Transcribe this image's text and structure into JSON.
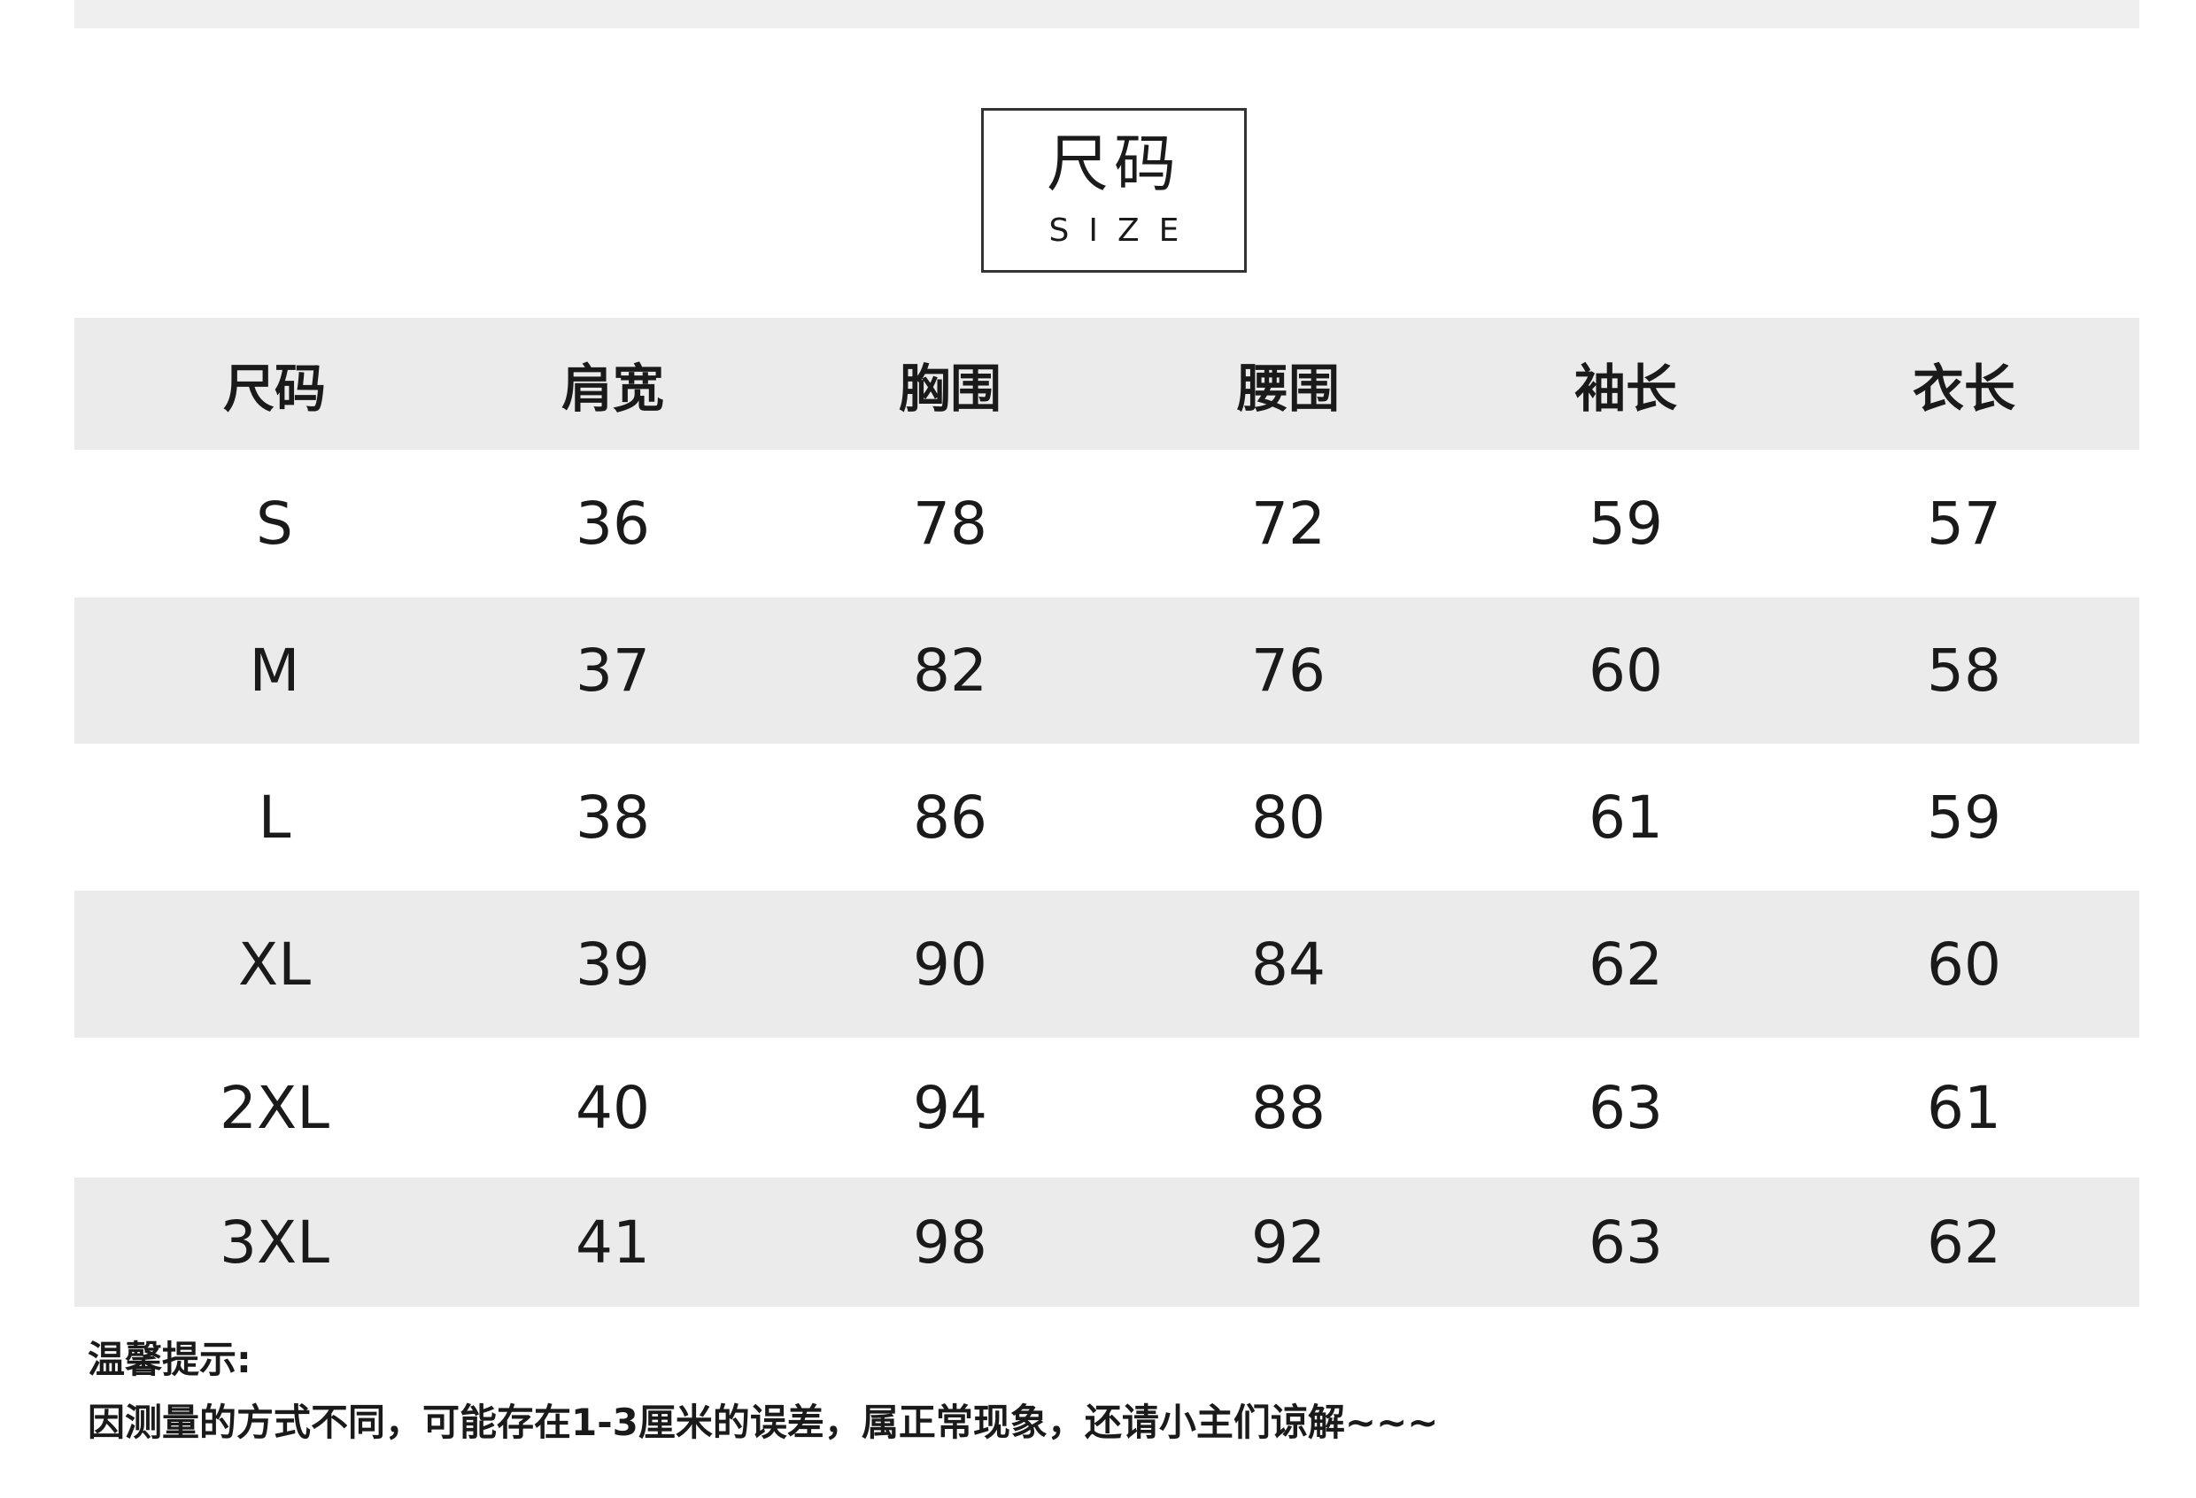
{
  "title": {
    "zh": "尺码",
    "en": "SIZE"
  },
  "table": {
    "headers": [
      "尺码",
      "肩宽",
      "胸围",
      "腰围",
      "袖长",
      "衣长"
    ],
    "rows": [
      [
        "S",
        "36",
        "78",
        "72",
        "59",
        "57"
      ],
      [
        "M",
        "37",
        "82",
        "76",
        "60",
        "58"
      ],
      [
        "L",
        "38",
        "86",
        "80",
        "61",
        "59"
      ],
      [
        "XL",
        "39",
        "90",
        "84",
        "62",
        "60"
      ],
      [
        "2XL",
        "40",
        "94",
        "88",
        "63",
        "61"
      ],
      [
        "3XL",
        "41",
        "98",
        "92",
        "63",
        "62"
      ]
    ]
  },
  "notes": {
    "heading": "温馨提示:",
    "body": "因测量的方式不同，可能存在1-3厘米的误差，属正常现象，还请小主们谅解~~~"
  },
  "colors": {
    "stripe": "#ebebeb",
    "text": "#1a1a1a"
  }
}
